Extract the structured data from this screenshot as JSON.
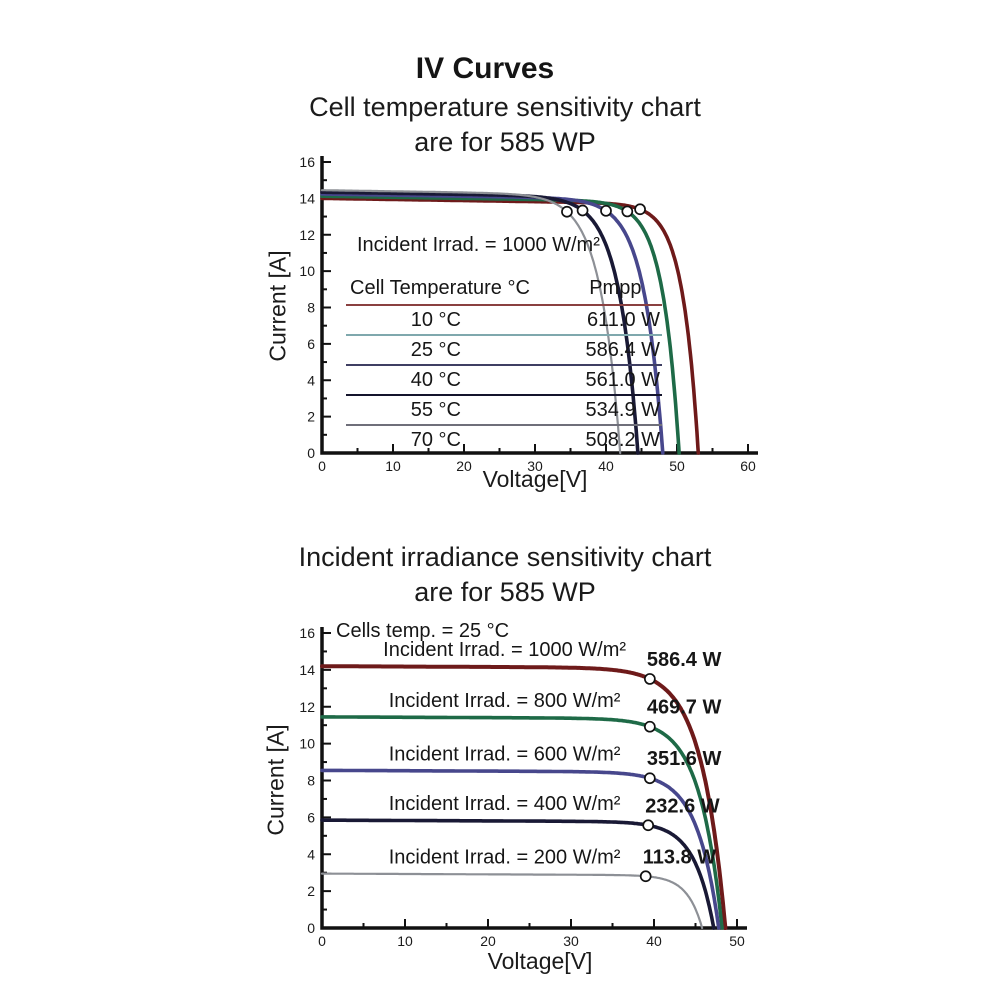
{
  "page": {
    "title": "IV Curves"
  },
  "chart_data": [
    {
      "type": "line",
      "title_line1": "Cell temperature sensitivity chart",
      "title_line2": "are for 585 WP",
      "xlabel": "Voltage[V]",
      "ylabel": "Current [A]",
      "annotation": "Incident Irrad. = 1000 W/m²",
      "xlim": [
        0,
        60
      ],
      "ylim": [
        0,
        16
      ],
      "x_ticks": [
        0,
        10,
        20,
        30,
        40,
        50,
        60
      ],
      "y_ticks": [
        0,
        2,
        4,
        6,
        8,
        10,
        12,
        14,
        16
      ],
      "x_minor_step": 5,
      "y_minor_step": 1,
      "legend_position": "inside-left",
      "grid": false,
      "series": [
        {
          "name": "10 °C",
          "pmpp": "611.0 W",
          "color": "#6e1a1a",
          "isc": 14.0,
          "voc": 53.0,
          "vmpp": 44.8,
          "impp": 13.3,
          "knee": 2.2,
          "droop": 0.006,
          "width": 3.6
        },
        {
          "name": "25 °C",
          "pmpp": "586.4 W",
          "color": "#1e6a47",
          "isc": 14.12,
          "voc": 50.3,
          "vmpp": 43.0,
          "impp": 13.3,
          "knee": 2.3,
          "droop": 0.006,
          "width": 3.6
        },
        {
          "name": "40 °C",
          "pmpp": "561.0 W",
          "color": "#47478c",
          "isc": 14.24,
          "voc": 48.0,
          "vmpp": 40.0,
          "impp": 13.3,
          "knee": 2.65,
          "droop": 0.006,
          "width": 3.6
        },
        {
          "name": "55 °C",
          "pmpp": "534.9 W",
          "color": "#191935",
          "isc": 14.34,
          "voc": 44.5,
          "vmpp": 36.7,
          "impp": 13.3,
          "knee": 2.7,
          "droop": 0.006,
          "width": 3.6
        },
        {
          "name": "70 °C",
          "pmpp": "508.2 W",
          "color": "#8d9096",
          "isc": 14.45,
          "voc": 42.0,
          "vmpp": 34.5,
          "impp": 13.3,
          "knee": 2.8,
          "droop": 0.006,
          "width": 2.2
        }
      ],
      "legend_table": {
        "headers": [
          "Cell Temperature °C",
          "Pmpp"
        ],
        "rows": [
          [
            "10 °C",
            "611.0 W"
          ],
          [
            "25 °C",
            "586.4 W"
          ],
          [
            "40 °C",
            "561.0 W"
          ],
          [
            "55 °C",
            "534.9 W"
          ],
          [
            "70 °C",
            "508.2 W"
          ]
        ],
        "sep_colors": [
          "#8a4040",
          "#7fa8ad",
          "#3f3f63",
          "#14142c",
          "#6f6f7a"
        ]
      }
    },
    {
      "type": "line",
      "title_line1": "Incident irradiance sensitivity chart",
      "title_line2": "are for 585 WP",
      "xlabel": "Voltage[V]",
      "ylabel": "Current [A]",
      "annotation": "Cells temp. = 25 °C",
      "xlim": [
        0,
        50
      ],
      "ylim": [
        0,
        16
      ],
      "x_ticks": [
        0,
        10,
        20,
        30,
        40,
        50
      ],
      "y_ticks": [
        0,
        2,
        4,
        6,
        8,
        10,
        12,
        14,
        16
      ],
      "x_minor_step": 5,
      "y_minor_step": 1,
      "grid": false,
      "series": [
        {
          "name": "Incident Irrad. = 1000 W/m²",
          "power": "586.4 W",
          "color": "#6e1a1a",
          "isc": 14.2,
          "voc": 48.6,
          "vmpp": 39.5,
          "impp": 13.5,
          "knee": 2.9,
          "droop": 0.002,
          "width": 4.0
        },
        {
          "name": "Incident Irrad. = 800 W/m²",
          "power": "469.7 W",
          "color": "#1e6a47",
          "isc": 11.45,
          "voc": 48.2,
          "vmpp": 39.5,
          "impp": 10.9,
          "knee": 2.7,
          "droop": 0.002,
          "width": 3.6
        },
        {
          "name": "Incident Irrad. = 600 W/m²",
          "power": "351.6 W",
          "color": "#47478c",
          "isc": 8.55,
          "voc": 47.8,
          "vmpp": 39.5,
          "impp": 8.15,
          "knee": 2.6,
          "droop": 0.002,
          "width": 3.6
        },
        {
          "name": "Incident Irrad. = 400 W/m²",
          "power": "232.6 W",
          "color": "#191935",
          "isc": 5.85,
          "voc": 47.2,
          "vmpp": 39.3,
          "impp": 5.55,
          "knee": 2.35,
          "droop": 0.002,
          "width": 3.6
        },
        {
          "name": "Incident Irrad. = 200 W/m²",
          "power": "113.8 W",
          "color": "#8d9096",
          "isc": 2.95,
          "voc": 45.8,
          "vmpp": 39.0,
          "impp": 2.85,
          "knee": 1.8,
          "droop": 0.002,
          "width": 2.2
        }
      ]
    }
  ]
}
